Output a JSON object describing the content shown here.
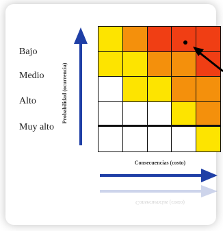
{
  "levels": [
    "Bajo",
    "Medio",
    "Alto",
    "Muy alto"
  ],
  "y_axis_label": "Probabilidad (ocurrencia)",
  "x_axis_label": "Consecuencias (costo)",
  "x_axis_label_reflection": "Consecuencias (costo)",
  "colors": {
    "red": "#f03e14",
    "orange": "#f4900c",
    "yellow": "#fde400",
    "white": "#ffffff",
    "arrow_blue": "#1f3fa6",
    "marker": "#000000"
  },
  "grid_fill": [
    [
      "yellow",
      "orange",
      "red",
      "red",
      "red"
    ],
    [
      "yellow",
      "yellow",
      "orange",
      "orange",
      "red"
    ],
    [
      "white",
      "yellow",
      "yellow",
      "orange",
      "orange"
    ],
    [
      "white",
      "white",
      "white",
      "yellow",
      "orange"
    ],
    [
      "white",
      "white",
      "white",
      "white",
      "yellow"
    ]
  ],
  "marker_cell": {
    "row": 0,
    "col": 3
  }
}
